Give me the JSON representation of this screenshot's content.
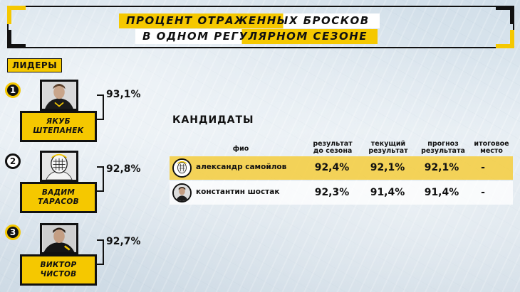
{
  "header": {
    "title_line1": "ПРОЦЕНТ ОТРАЖЕННЫХ БРОСКОВ",
    "title_line2": "В ОДНОМ РЕГУЛЯРНОМ СЕЗОНЕ"
  },
  "leaders": {
    "label": "ЛИДЕРЫ",
    "items": [
      {
        "rank": "1",
        "name_line1": "ЯКУБ",
        "name_line2": "ШТЕПАНЕК",
        "value": "93,1%"
      },
      {
        "rank": "2",
        "name_line1": "ВАДИМ",
        "name_line2": "ТАРАСОВ",
        "value": "92,8%"
      },
      {
        "rank": "3",
        "name_line1": "ВИКТОР",
        "name_line2": "ЧИСТОВ",
        "value": "92,7%"
      }
    ]
  },
  "candidates": {
    "label": "КАНДИДАТЫ",
    "columns": {
      "name": "фио",
      "before_line1": "результат",
      "before_line2": "до сезона",
      "current_line1": "текущий",
      "current_line2": "результат",
      "forecast_line1": "прогноз",
      "forecast_line2": "результата",
      "final_line1": "итоговое",
      "final_line2": "место"
    },
    "rows": [
      {
        "name": "александр самойлов",
        "before": "92,4%",
        "current": "92,1%",
        "forecast": "92,1%",
        "final": "-"
      },
      {
        "name": "константин шостак",
        "before": "92,3%",
        "current": "91,4%",
        "forecast": "91,4%",
        "final": "-"
      }
    ]
  },
  "colors": {
    "accent": "#f5c800",
    "ink": "#111111"
  }
}
